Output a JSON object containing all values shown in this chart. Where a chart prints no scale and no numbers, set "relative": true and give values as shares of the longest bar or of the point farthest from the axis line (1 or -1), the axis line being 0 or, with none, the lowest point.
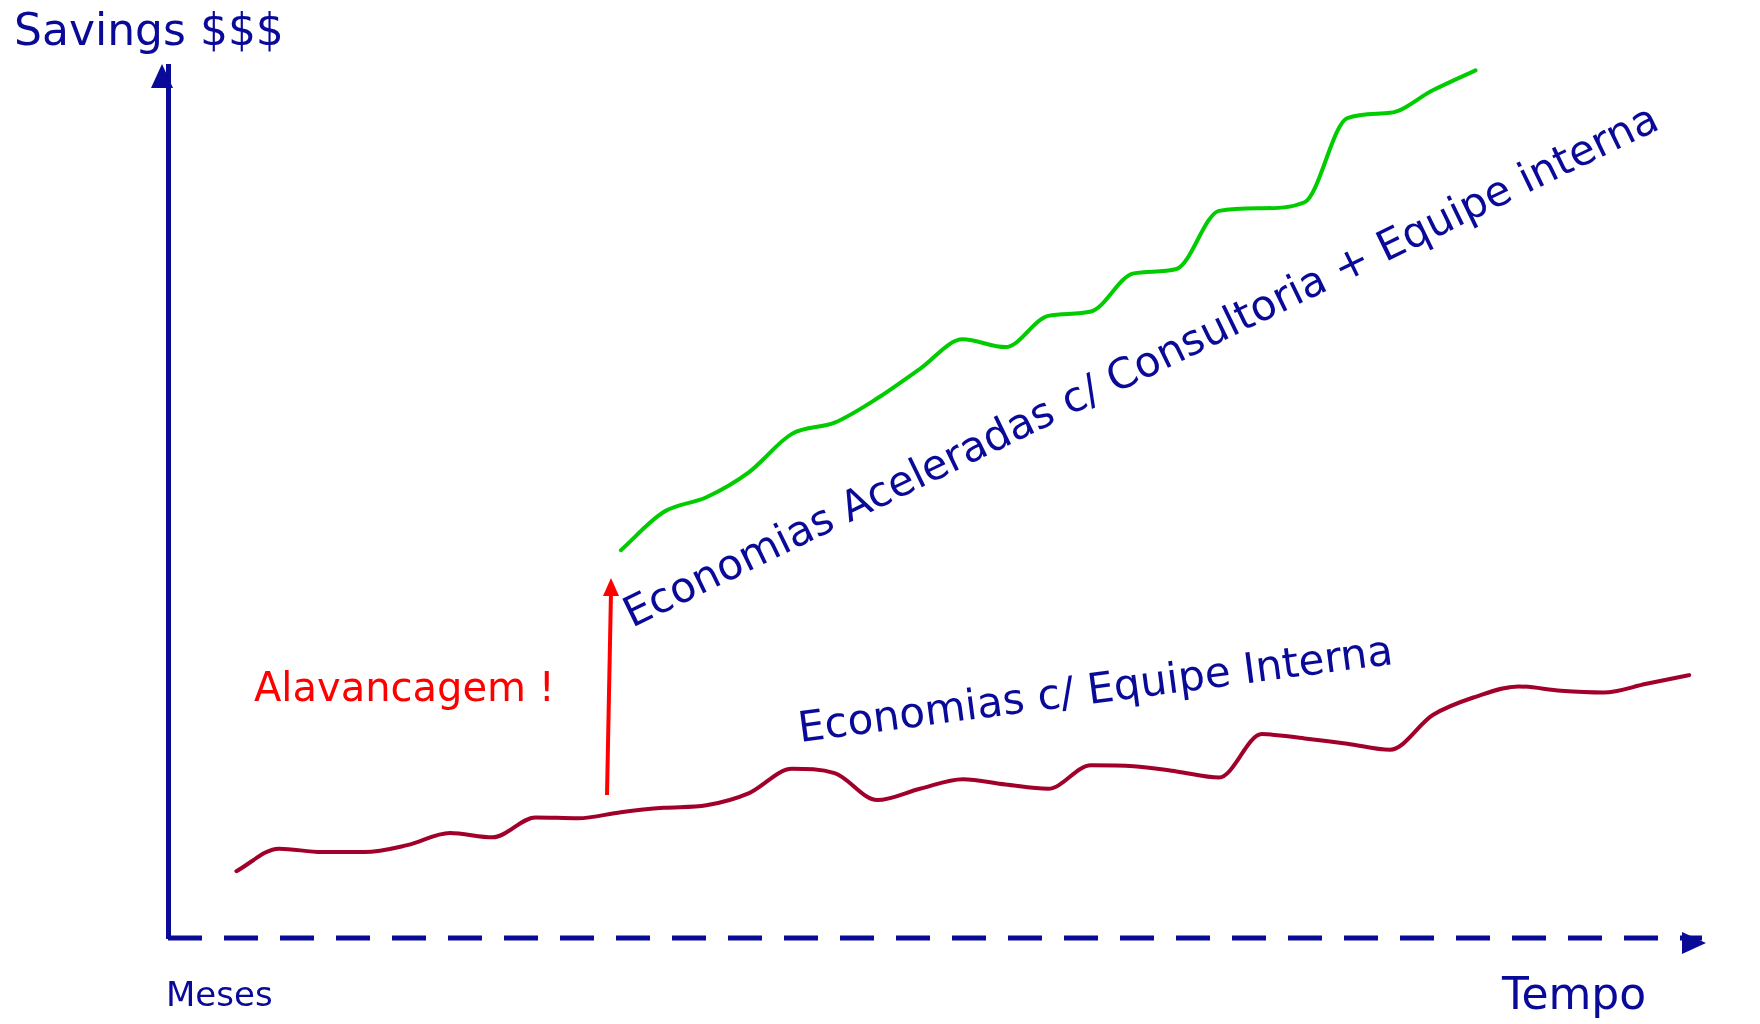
{
  "chart_data": {
    "type": "line",
    "relative": true,
    "ylabel": "Savings $$$",
    "xlabel": "Tempo",
    "annotations": [
      "Meses",
      "Alavancagem !"
    ],
    "legend": false,
    "grid": false,
    "tick_labels": false,
    "marker": "none",
    "line_style": "solid",
    "categories": [
      null,
      null,
      null,
      null,
      null,
      null,
      null,
      null,
      null,
      null,
      null,
      null,
      null,
      null,
      null,
      null,
      null,
      null,
      null,
      null,
      null,
      null,
      null,
      null,
      null,
      null,
      null,
      null,
      null,
      null,
      null,
      null,
      null,
      null,
      null
    ],
    "series": [
      {
        "name": "Economias c/ Equipe Interna",
        "color": "#a0002a",
        "values": [
          0.077,
          0.103,
          0.099,
          0.099,
          0.107,
          0.121,
          0.116,
          0.139,
          0.138,
          0.145,
          0.15,
          0.153,
          0.167,
          0.195,
          0.19,
          0.159,
          0.172,
          0.183,
          0.177,
          0.172,
          0.199,
          0.198,
          0.192,
          0.185,
          0.235,
          0.23,
          0.224,
          0.217,
          0.257,
          0.278,
          0.29,
          0.285,
          0.283,
          0.293,
          0.303
        ]
      },
      {
        "name": "Economias Aceleradas c/ Consultoria + Equipe interna",
        "color": "#00cc00",
        "values": [
          null,
          null,
          null,
          null,
          null,
          null,
          null,
          null,
          null,
          0.447,
          0.491,
          0.508,
          0.537,
          0.581,
          0.594,
          0.622,
          0.656,
          0.69,
          0.681,
          0.717,
          0.722,
          0.766,
          0.771,
          0.838,
          0.841,
          0.848,
          0.945,
          0.951,
          0.977,
          1,
          null,
          null,
          null,
          null,
          null
        ]
      }
    ]
  }
}
